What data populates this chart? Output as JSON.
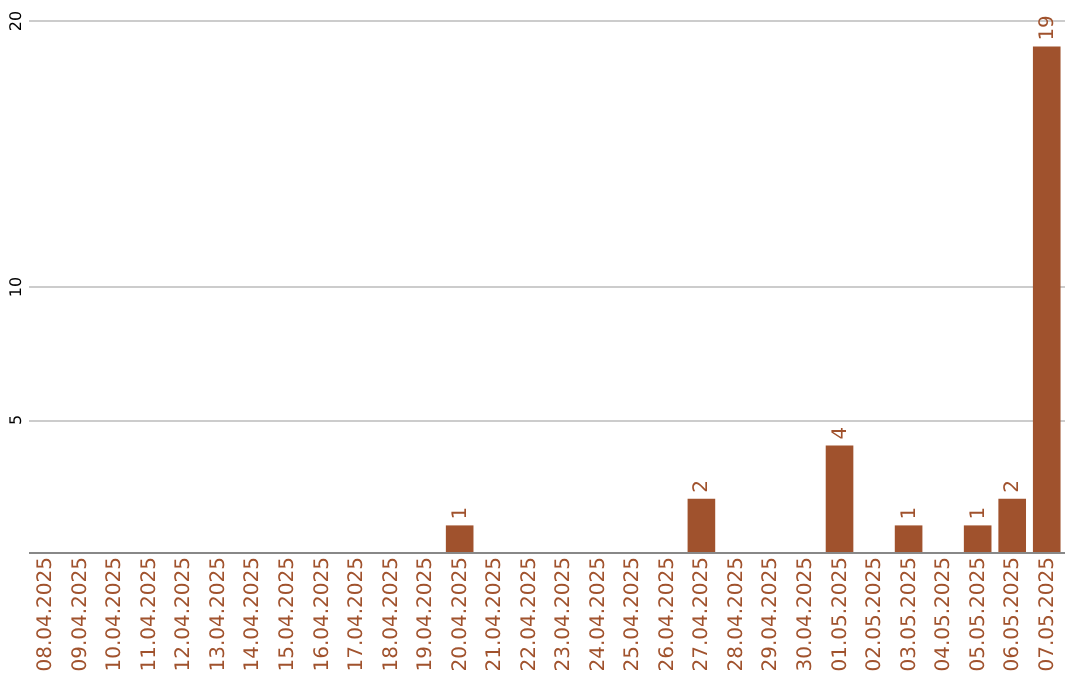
{
  "chart_data": {
    "type": "bar",
    "categories": [
      "08.04.2025",
      "09.04.2025",
      "10.04.2025",
      "11.04.2025",
      "12.04.2025",
      "13.04.2025",
      "14.04.2025",
      "15.04.2025",
      "16.04.2025",
      "17.04.2025",
      "18.04.2025",
      "19.04.2025",
      "20.04.2025",
      "21.04.2025",
      "22.04.2025",
      "23.04.2025",
      "24.04.2025",
      "25.04.2025",
      "26.04.2025",
      "27.04.2025",
      "28.04.2025",
      "29.04.2025",
      "30.04.2025",
      "01.05.2025",
      "02.05.2025",
      "03.05.2025",
      "04.05.2025",
      "05.05.2025",
      "06.05.2025",
      "07.05.2025"
    ],
    "values": [
      0,
      0,
      0,
      0,
      0,
      0,
      0,
      0,
      0,
      0,
      0,
      0,
      1,
      0,
      0,
      0,
      0,
      0,
      0,
      2,
      0,
      0,
      0,
      4,
      0,
      1,
      0,
      1,
      2,
      19
    ],
    "value_labels": [
      null,
      null,
      null,
      null,
      null,
      null,
      null,
      null,
      null,
      null,
      null,
      null,
      "1",
      null,
      null,
      null,
      null,
      null,
      null,
      "2",
      null,
      null,
      null,
      "4",
      null,
      "1",
      null,
      "1",
      "2",
      "19"
    ],
    "color": "#a0522d",
    "ylim": [
      0,
      20
    ],
    "yticks": [
      5,
      10,
      20
    ],
    "grid": "y"
  }
}
